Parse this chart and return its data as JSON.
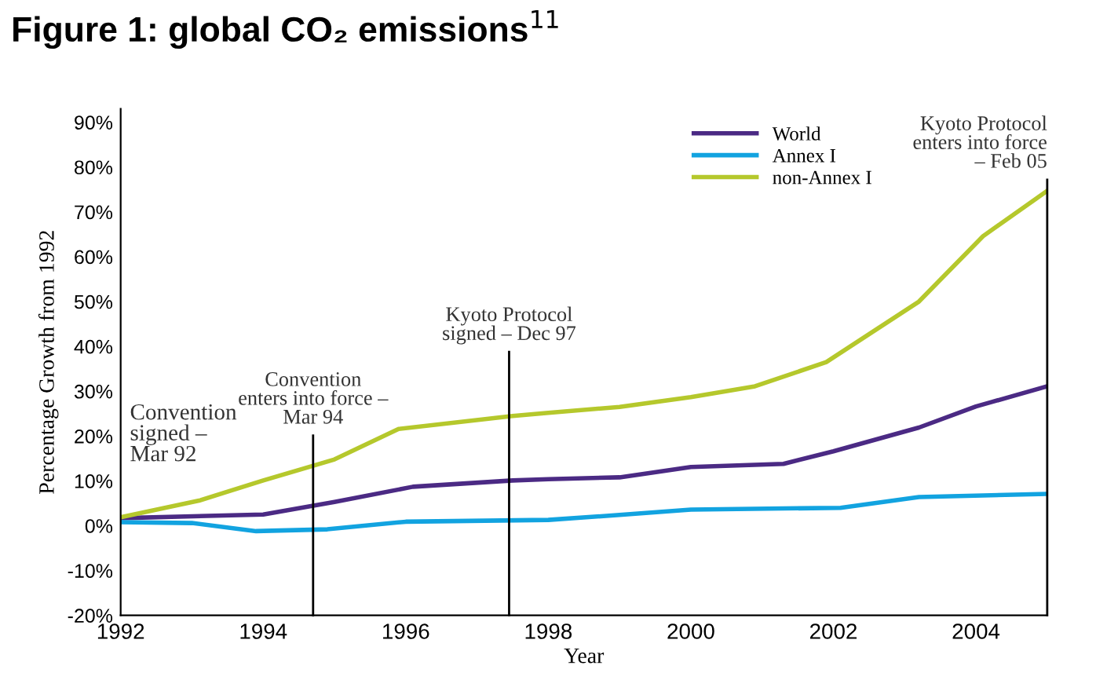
{
  "chart_data": {
    "type": "line",
    "title": "Figure 1: global CO₂ emissions$^{11}$",
    "xlabel": "Year",
    "ylabel": "Percentage Growth from 1992",
    "xlim": [
      1992,
      2005
    ],
    "xticks": [
      1992,
      1994,
      1996,
      1998,
      2000,
      2002,
      2004
    ],
    "ylim": [
      -20,
      93
    ],
    "yticks": [
      {
        "value": -20,
        "label": "-20%"
      },
      {
        "value": -10,
        "label": "-10%"
      },
      {
        "value": 0,
        "label": "0%"
      },
      {
        "value": 10,
        "label": "10%"
      },
      {
        "value": 20,
        "label": "20%"
      },
      {
        "value": 30,
        "label": "30%"
      },
      {
        "value": 40,
        "label": "40%"
      },
      {
        "value": 50,
        "label": "50%"
      },
      {
        "value": 60,
        "label": "60%"
      },
      {
        "value": 70,
        "label": "70%"
      },
      {
        "value": 80,
        "label": "80%"
      },
      {
        "value": 90,
        "label": "90%"
      }
    ],
    "series": [
      {
        "name": "World",
        "color": "#4b2a84",
        "x": [
          1992,
          1994,
          1995,
          1996.1,
          1997.5,
          1998,
          1999,
          2000,
          2001.3,
          2002,
          2003.2,
          2004,
          2005
        ],
        "values": [
          1.7,
          2.5,
          5.3,
          8.7,
          10.1,
          10.4,
          10.8,
          13.1,
          13.8,
          16.6,
          21.9,
          26.6,
          31.1
        ]
      },
      {
        "name": "Annex I",
        "color": "#12a3e0",
        "x": [
          1992,
          1993,
          1993.9,
          1994.9,
          1996,
          1998,
          1999,
          2000,
          2002.1,
          2003.2,
          2005
        ],
        "values": [
          0.8,
          0.6,
          -1.2,
          -0.8,
          0.9,
          1.3,
          2.4,
          3.6,
          4.0,
          6.4,
          7.1
        ]
      },
      {
        "name": "non-Annex I",
        "color": "#b5c82c",
        "x": [
          1992,
          1993.1,
          1993.5,
          1994,
          1995,
          1995.9,
          1997.5,
          1998,
          1999,
          2000,
          2000.9,
          2001.9,
          2003.2,
          2004.1,
          2005
        ],
        "values": [
          1.9,
          5.6,
          7.6,
          10.1,
          14.8,
          21.6,
          24.5,
          25.2,
          26.5,
          28.7,
          31.1,
          36.5,
          50.0,
          64.6,
          74.7
        ]
      }
    ],
    "ref_lines": [
      {
        "axis": "x",
        "value": 1994.7,
        "label": "Convention\nenters into force –\nMar 94",
        "color": "#000000"
      },
      {
        "axis": "x",
        "value": 1997.45,
        "label": "Kyoto Protocol\nsigned – Dec 97",
        "color": "#000000"
      },
      {
        "axis": "x",
        "value": 2005,
        "label": "Kyoto Protocol\nenters into force\n– Feb 05",
        "color": "#000000"
      }
    ],
    "annotations": [
      "Convention\nsigned –\nMar 92"
    ],
    "legend": "top right",
    "grid": false,
    "marker": "none",
    "line_style": "solid"
  }
}
